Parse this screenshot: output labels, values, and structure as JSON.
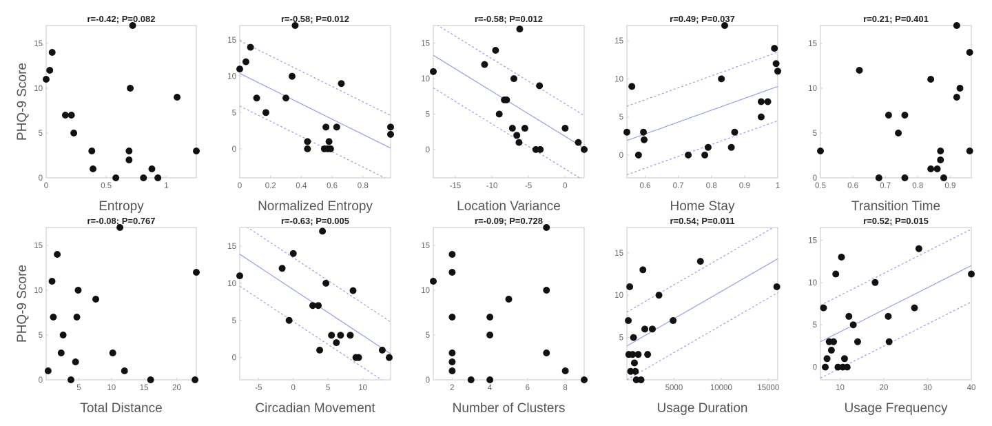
{
  "chart_data": [
    {
      "type": "scatter",
      "title": "r=-0.42; P=0.082",
      "xlabel": "Entropy",
      "ylabel": "PHQ-9 Score",
      "xlim": [
        0,
        1.25
      ],
      "ylim": [
        0,
        17
      ],
      "xticks": [
        0,
        0.5,
        1
      ],
      "xticklabels": [
        "0",
        "0.5",
        "1"
      ],
      "yticks": [
        0,
        5,
        10,
        15
      ],
      "yticklabels": [
        "0",
        "5",
        "10",
        "15"
      ],
      "fit": null,
      "points": [
        [
          0.0,
          11
        ],
        [
          0.03,
          12
        ],
        [
          0.05,
          14
        ],
        [
          0.16,
          7
        ],
        [
          0.21,
          7
        ],
        [
          0.23,
          5
        ],
        [
          0.38,
          3
        ],
        [
          0.39,
          1
        ],
        [
          0.58,
          0
        ],
        [
          0.69,
          3
        ],
        [
          0.69,
          2
        ],
        [
          0.7,
          10
        ],
        [
          0.72,
          17
        ],
        [
          0.81,
          0
        ],
        [
          0.88,
          1
        ],
        [
          0.93,
          0
        ],
        [
          1.09,
          9
        ],
        [
          1.25,
          3
        ]
      ]
    },
    {
      "type": "scatter",
      "title": "r=-0.58; P=0.012",
      "xlabel": "Normalized Entropy",
      "ylabel": "",
      "xlim": [
        0,
        0.98
      ],
      "ylim": [
        -4,
        17
      ],
      "xticks": [
        0,
        0.2,
        0.4,
        0.6,
        0.8
      ],
      "xticklabels": [
        "0",
        "0.2",
        "0.4",
        "0.6",
        "0.8"
      ],
      "yticks": [
        0,
        5,
        10,
        15
      ],
      "yticklabels": [
        "0",
        "5",
        "10",
        "15"
      ],
      "fit": {
        "x1": 0,
        "y1": 10.4,
        "x2": 0.98,
        "y2": 0.1,
        "band": 4.5
      },
      "points": [
        [
          0.0,
          11
        ],
        [
          0.04,
          12
        ],
        [
          0.07,
          14
        ],
        [
          0.11,
          7
        ],
        [
          0.17,
          5
        ],
        [
          0.3,
          7
        ],
        [
          0.34,
          10
        ],
        [
          0.36,
          17
        ],
        [
          0.44,
          1
        ],
        [
          0.44,
          0
        ],
        [
          0.55,
          0
        ],
        [
          0.56,
          3
        ],
        [
          0.57,
          0
        ],
        [
          0.58,
          1
        ],
        [
          0.59,
          0
        ],
        [
          0.63,
          3
        ],
        [
          0.66,
          9
        ],
        [
          0.98,
          3
        ],
        [
          0.98,
          2
        ]
      ]
    },
    {
      "type": "scatter",
      "title": "r=-0.58; P=0.012",
      "xlabel": "Location Variance",
      "ylabel": "",
      "xlim": [
        -18,
        2.6
      ],
      "ylim": [
        -4,
        17.5
      ],
      "xticks": [
        -15,
        -10,
        -5,
        0
      ],
      "xticklabels": [
        "-15",
        "-10",
        "-5",
        "0"
      ],
      "yticks": [
        0,
        5,
        10,
        15
      ],
      "yticklabels": [
        "0",
        "5",
        "10",
        "15"
      ],
      "fit": {
        "x1": -18,
        "y1": 13.3,
        "x2": 2.6,
        "y2": 0.2,
        "band": 4.6
      },
      "points": [
        [
          -18,
          11
        ],
        [
          -11,
          12
        ],
        [
          -9.5,
          14
        ],
        [
          -9,
          5
        ],
        [
          -8.3,
          7
        ],
        [
          -8,
          7
        ],
        [
          -7.2,
          3
        ],
        [
          -7,
          10
        ],
        [
          -6.6,
          2
        ],
        [
          -6.3,
          1
        ],
        [
          -6.2,
          17
        ],
        [
          -5.5,
          3
        ],
        [
          -4,
          0
        ],
        [
          -3.5,
          9
        ],
        [
          -3.4,
          0
        ],
        [
          0,
          3
        ],
        [
          1.8,
          1
        ],
        [
          2.6,
          0
        ]
      ]
    },
    {
      "type": "scatter",
      "title": "r=0.49; P=0.037",
      "xlabel": "Home Stay",
      "ylabel": "",
      "xlim": [
        0.545,
        1
      ],
      "ylim": [
        -3,
        17
      ],
      "xticks": [
        0.6,
        0.7,
        0.8,
        0.9,
        1
      ],
      "xticklabels": [
        "0.6",
        "0.7",
        "0.8",
        "0.9",
        "1"
      ],
      "yticks": [
        0,
        5,
        10,
        15
      ],
      "yticklabels": [
        "0",
        "5",
        "10",
        "15"
      ],
      "fit": {
        "x1": 0.545,
        "y1": 1.9,
        "x2": 1,
        "y2": 9.0,
        "band": 4.5
      },
      "points": [
        [
          0.545,
          3
        ],
        [
          0.56,
          9
        ],
        [
          0.58,
          0
        ],
        [
          0.595,
          3
        ],
        [
          0.597,
          2
        ],
        [
          0.73,
          0
        ],
        [
          0.78,
          0
        ],
        [
          0.79,
          1
        ],
        [
          0.83,
          10
        ],
        [
          0.84,
          17
        ],
        [
          0.86,
          1
        ],
        [
          0.87,
          3
        ],
        [
          0.95,
          5
        ],
        [
          0.95,
          7
        ],
        [
          0.97,
          7
        ],
        [
          0.99,
          14
        ],
        [
          0.995,
          12
        ],
        [
          1.0,
          11
        ]
      ]
    },
    {
      "type": "scatter",
      "title": "r=0.21; P=0.401",
      "xlabel": "Transition Time",
      "ylabel": "",
      "xlim": [
        0.5,
        0.965
      ],
      "ylim": [
        0,
        17
      ],
      "xticks": [
        0.5,
        0.6,
        0.7,
        0.8,
        0.9
      ],
      "xticklabels": [
        "0.5",
        "0.6",
        "0.7",
        "0.8",
        "0.9"
      ],
      "yticks": [
        0,
        5,
        10,
        15
      ],
      "yticklabels": [
        "0",
        "5",
        "10",
        "15"
      ],
      "fit": null,
      "points": [
        [
          0.5,
          3
        ],
        [
          0.62,
          12
        ],
        [
          0.68,
          0
        ],
        [
          0.71,
          7
        ],
        [
          0.74,
          5
        ],
        [
          0.76,
          7
        ],
        [
          0.76,
          0
        ],
        [
          0.84,
          11
        ],
        [
          0.84,
          1
        ],
        [
          0.86,
          1
        ],
        [
          0.87,
          3
        ],
        [
          0.87,
          2
        ],
        [
          0.88,
          0
        ],
        [
          0.92,
          17
        ],
        [
          0.92,
          9
        ],
        [
          0.93,
          10
        ],
        [
          0.96,
          14
        ],
        [
          0.96,
          3
        ]
      ]
    },
    {
      "type": "scatter",
      "title": "r=-0.08; P=0.767",
      "xlabel": "Total Distance",
      "ylabel": "PHQ-9 Score",
      "xlim": [
        0,
        23
      ],
      "ylim": [
        0,
        17
      ],
      "xticks": [
        5,
        10,
        15,
        20
      ],
      "xticklabels": [
        "5",
        "10",
        "15",
        "20"
      ],
      "yticks": [
        0,
        5,
        10,
        15
      ],
      "yticklabels": [
        "0",
        "5",
        "10",
        "15"
      ],
      "fit": null,
      "points": [
        [
          0.3,
          1
        ],
        [
          0.9,
          11
        ],
        [
          1.1,
          7
        ],
        [
          1.7,
          14
        ],
        [
          2.3,
          3
        ],
        [
          2.6,
          5
        ],
        [
          3.8,
          0
        ],
        [
          4.5,
          2
        ],
        [
          4.7,
          7
        ],
        [
          4.9,
          10
        ],
        [
          7.6,
          9
        ],
        [
          10.2,
          3
        ],
        [
          11.3,
          17
        ],
        [
          12,
          1
        ],
        [
          16,
          0
        ],
        [
          22.8,
          0
        ],
        [
          23,
          12
        ]
      ]
    },
    {
      "type": "scatter",
      "title": "r=-0.63; P=0.005",
      "xlabel": "Circadian Movement",
      "ylabel": "",
      "xlim": [
        -7.7,
        14
      ],
      "ylim": [
        -3,
        17.5
      ],
      "xticks": [
        -5,
        0,
        5,
        10
      ],
      "xticklabels": [
        "-5",
        "0",
        "5",
        "10"
      ],
      "yticks": [
        0,
        5,
        10,
        15
      ],
      "yticklabels": [
        "0",
        "5",
        "10",
        "15"
      ],
      "fit": {
        "x1": -7.7,
        "y1": 13.9,
        "x2": 14,
        "y2": 0.5,
        "band": 4.3
      },
      "points": [
        [
          -7.7,
          11
        ],
        [
          -1.6,
          12
        ],
        [
          -0.6,
          5
        ],
        [
          0,
          14
        ],
        [
          2.8,
          7
        ],
        [
          3.6,
          7
        ],
        [
          3.8,
          1
        ],
        [
          4.2,
          17
        ],
        [
          4.7,
          10
        ],
        [
          5.5,
          3
        ],
        [
          6.2,
          2
        ],
        [
          6.8,
          3
        ],
        [
          8.2,
          3
        ],
        [
          8.6,
          9
        ],
        [
          9,
          0
        ],
        [
          9.4,
          0
        ],
        [
          12.8,
          1
        ],
        [
          13.8,
          0
        ]
      ]
    },
    {
      "type": "scatter",
      "title": "r=-0.09; P=0.728",
      "xlabel": "Number of Clusters",
      "ylabel": "",
      "xlim": [
        1,
        9
      ],
      "ylim": [
        0,
        17
      ],
      "xticks": [
        2,
        4,
        6,
        8
      ],
      "xticklabels": [
        "2",
        "4",
        "6",
        "8"
      ],
      "yticks": [
        0,
        5,
        10,
        15
      ],
      "yticklabels": [
        "0",
        "5",
        "10",
        "15"
      ],
      "fit": null,
      "points": [
        [
          1,
          11
        ],
        [
          2,
          14
        ],
        [
          2,
          12
        ],
        [
          2,
          7
        ],
        [
          2,
          3
        ],
        [
          2,
          2
        ],
        [
          2,
          1
        ],
        [
          3,
          0
        ],
        [
          4,
          7
        ],
        [
          4,
          5
        ],
        [
          4,
          0
        ],
        [
          5,
          9
        ],
        [
          7,
          17
        ],
        [
          7,
          10
        ],
        [
          7,
          3
        ],
        [
          8,
          1
        ],
        [
          9,
          0
        ]
      ]
    },
    {
      "type": "scatter",
      "title": "r=0.54; P=0.011",
      "xlabel": "Usage Duration",
      "ylabel": "",
      "xlim": [
        0,
        16000
      ],
      "ylim": [
        0,
        18
      ],
      "xticks": [
        5000,
        10000,
        15000
      ],
      "xticklabels": [
        "5000",
        "10000",
        "15000"
      ],
      "yticks": [
        5,
        10,
        15
      ],
      "yticklabels": [
        "5",
        "10",
        "15"
      ],
      "fit": {
        "x1": 0,
        "y1": 4.0,
        "x2": 16000,
        "y2": 14.3,
        "band": 4.0
      },
      "points": [
        [
          150,
          7
        ],
        [
          300,
          11
        ],
        [
          200,
          3
        ],
        [
          400,
          1
        ],
        [
          600,
          3
        ],
        [
          700,
          5
        ],
        [
          800,
          2
        ],
        [
          900,
          1
        ],
        [
          1000,
          0
        ],
        [
          1200,
          3
        ],
        [
          1500,
          0
        ],
        [
          1700,
          13
        ],
        [
          1900,
          6
        ],
        [
          2200,
          3
        ],
        [
          2700,
          6
        ],
        [
          3400,
          10
        ],
        [
          4900,
          7
        ],
        [
          7800,
          14
        ],
        [
          15900,
          11
        ]
      ]
    },
    {
      "type": "scatter",
      "title": "r=0.52; P=0.015",
      "xlabel": "Usage Frequency",
      "ylabel": "",
      "xlim": [
        5.5,
        40
      ],
      "ylim": [
        -1.5,
        16.5
      ],
      "xticks": [
        10,
        20,
        30,
        40
      ],
      "xticklabels": [
        "10",
        "20",
        "30",
        "40"
      ],
      "yticks": [
        0,
        5,
        10,
        15
      ],
      "yticklabels": [
        "0",
        "5",
        "10",
        "15"
      ],
      "fit": {
        "x1": 5.5,
        "y1": 3.0,
        "x2": 40,
        "y2": 12.0,
        "band": 4.3
      },
      "points": [
        [
          6.2,
          7
        ],
        [
          6.6,
          0
        ],
        [
          7,
          1
        ],
        [
          7.5,
          3
        ],
        [
          8,
          2
        ],
        [
          8.5,
          3
        ],
        [
          9,
          11
        ],
        [
          9.5,
          0
        ],
        [
          10.3,
          13
        ],
        [
          10.6,
          0
        ],
        [
          11,
          1
        ],
        [
          11.6,
          0
        ],
        [
          12,
          6
        ],
        [
          13,
          5
        ],
        [
          14,
          3
        ],
        [
          18,
          10
        ],
        [
          21,
          6
        ],
        [
          21.2,
          3
        ],
        [
          27,
          7
        ],
        [
          28,
          14
        ],
        [
          40,
          11
        ]
      ]
    }
  ]
}
